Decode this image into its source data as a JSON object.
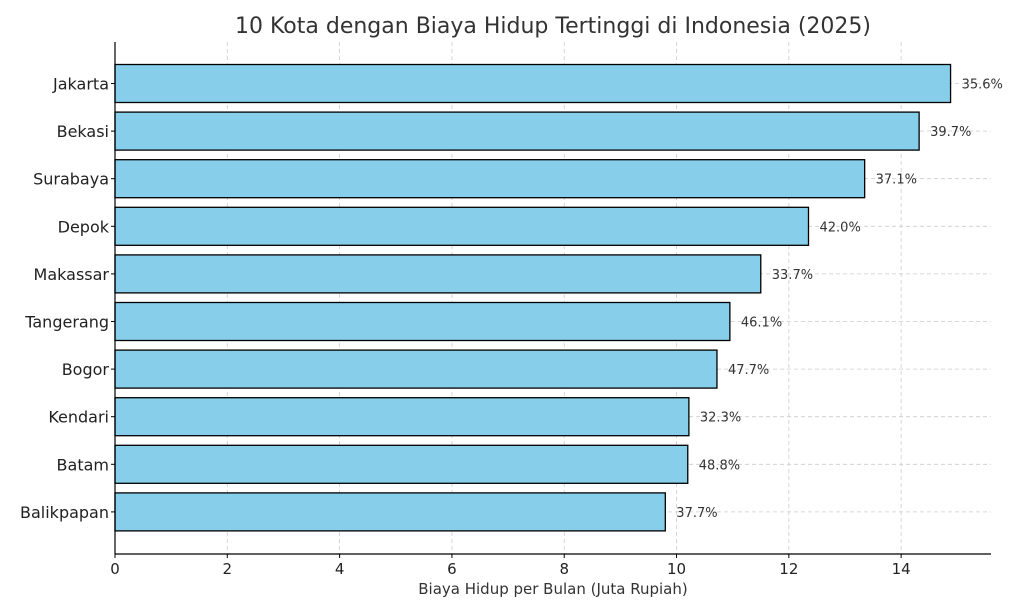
{
  "chart_data": {
    "type": "bar",
    "orientation": "horizontal",
    "title": "10 Kota dengan Biaya Hidup Tertinggi di Indonesia (2025)",
    "xlabel": "Biaya Hidup per Bulan (Juta Rupiah)",
    "ylabel": "",
    "xlim": [
      0,
      15.6
    ],
    "xticks": [
      0,
      2,
      4,
      6,
      8,
      10,
      12,
      14
    ],
    "grid": true,
    "bar_color": "#87ceeb",
    "bar_edge_color": "#000000",
    "categories": [
      "Jakarta",
      "Bekasi",
      "Surabaya",
      "Depok",
      "Makassar",
      "Tangerang",
      "Bogor",
      "Kendari",
      "Batam",
      "Balikpapan"
    ],
    "values": [
      14.88,
      14.32,
      13.35,
      12.35,
      11.5,
      10.95,
      10.72,
      10.22,
      10.2,
      9.8
    ],
    "labels": [
      "35.6%",
      "39.7%",
      "37.1%",
      "42.0%",
      "33.7%",
      "46.1%",
      "47.7%",
      "32.3%",
      "48.8%",
      "37.7%"
    ]
  }
}
